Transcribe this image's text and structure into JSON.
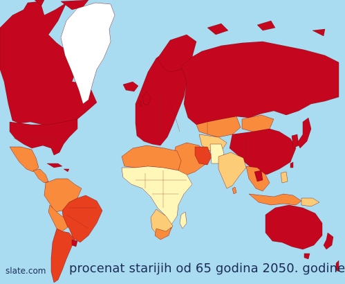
{
  "map": {
    "source": "slate.com",
    "title": "procenat starijih od 65 godina 2050. godine",
    "colors": {
      "ocean": "#a9dcf0",
      "highest": "#c4061f",
      "high": "#e8401f",
      "medium": "#f98b3c",
      "low": "#fdcc77",
      "lowest": "#fff7b8",
      "greenland": "#ffffff"
    }
  }
}
